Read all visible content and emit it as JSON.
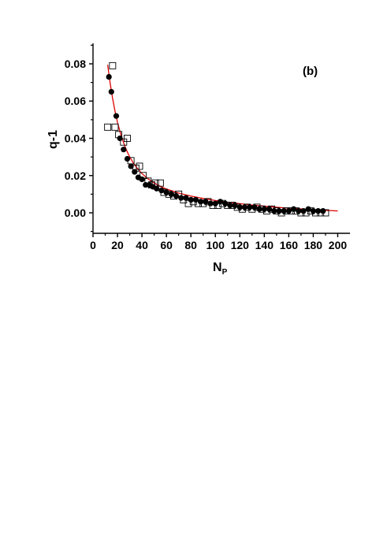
{
  "chart_data": {
    "type": "scatter",
    "panel_label": "(b)",
    "xlabel": "N",
    "xlabel_subscript": "P",
    "ylabel": "q-1",
    "xlim": [
      0,
      210
    ],
    "ylim": [
      -0.011,
      0.091
    ],
    "x_ticks": [
      0,
      20,
      40,
      60,
      80,
      100,
      120,
      140,
      160,
      180,
      200
    ],
    "y_ticks": [
      0.0,
      0.02,
      0.04,
      0.06,
      0.08
    ],
    "y_tick_labels": [
      "0.00",
      "0.02",
      "0.04",
      "0.06",
      "0.08"
    ],
    "grid": false,
    "colors": {
      "fit": "#e00000",
      "markers": "#000000"
    },
    "series": [
      {
        "marker": "filled-circle",
        "x": [
          13,
          15,
          19,
          22,
          25,
          28,
          31,
          34,
          37,
          40,
          43,
          46,
          49,
          52,
          56,
          60,
          64,
          68,
          72,
          76,
          80,
          84,
          88,
          92,
          96,
          100,
          104,
          108,
          112,
          116,
          120,
          124,
          128,
          132,
          136,
          140,
          144,
          148,
          152,
          156,
          160,
          164,
          168,
          172,
          176,
          180,
          184,
          188
        ],
        "y": [
          0.073,
          0.065,
          0.052,
          0.04,
          0.034,
          0.029,
          0.025,
          0.022,
          0.019,
          0.018,
          0.015,
          0.015,
          0.014,
          0.013,
          0.012,
          0.011,
          0.01,
          0.009,
          0.008,
          0.008,
          0.007,
          0.007,
          0.006,
          0.006,
          0.005,
          0.005,
          0.006,
          0.005,
          0.004,
          0.004,
          0.003,
          0.003,
          0.003,
          0.003,
          0.002,
          0.002,
          0.002,
          0.001,
          0.001,
          0.001,
          0.001,
          0.002,
          0.001,
          0.001,
          0.002,
          0.001,
          0.001,
          0.001
        ]
      },
      {
        "marker": "open-square",
        "x": [
          12,
          16,
          18,
          21,
          25,
          28,
          31,
          35,
          38,
          41,
          45,
          48,
          51,
          55,
          58,
          62,
          66,
          70,
          74,
          78,
          82,
          86,
          90,
          94,
          98,
          102,
          106,
          110,
          114,
          118,
          122,
          126,
          130,
          134,
          138,
          142,
          146,
          150,
          154,
          158,
          162,
          166,
          170,
          174,
          178,
          182,
          186,
          190
        ],
        "y": [
          0.046,
          0.079,
          0.046,
          0.042,
          0.038,
          0.04,
          0.028,
          0.024,
          0.025,
          0.02,
          0.017,
          0.015,
          0.016,
          0.016,
          0.011,
          0.01,
          0.009,
          0.01,
          0.007,
          0.005,
          0.006,
          0.005,
          0.005,
          0.006,
          0.004,
          0.004,
          0.005,
          0.004,
          0.004,
          0.003,
          0.002,
          0.003,
          0.002,
          0.003,
          0.002,
          0.001,
          0.002,
          0.001,
          0.0,
          0.001,
          0.001,
          0.001,
          0.0,
          0.0,
          0.001,
          0.0,
          0.0,
          0.0
        ]
      }
    ],
    "fit_curve": {
      "style": "solid-line",
      "x": [
        12,
        14,
        16,
        18,
        20,
        22,
        24,
        26,
        28,
        30,
        33,
        36,
        40,
        45,
        50,
        55,
        60,
        70,
        80,
        90,
        100,
        110,
        120,
        130,
        140,
        150,
        160,
        170,
        180,
        190,
        200
      ],
      "y": [
        0.0795,
        0.0698,
        0.0616,
        0.0546,
        0.0487,
        0.0437,
        0.0394,
        0.0358,
        0.0327,
        0.03,
        0.0267,
        0.024,
        0.0211,
        0.0182,
        0.016,
        0.0142,
        0.0128,
        0.0106,
        0.009,
        0.0077,
        0.0066,
        0.0057,
        0.0049,
        0.0042,
        0.0036,
        0.003,
        0.0025,
        0.0021,
        0.0017,
        0.0013,
        0.001
      ]
    }
  }
}
